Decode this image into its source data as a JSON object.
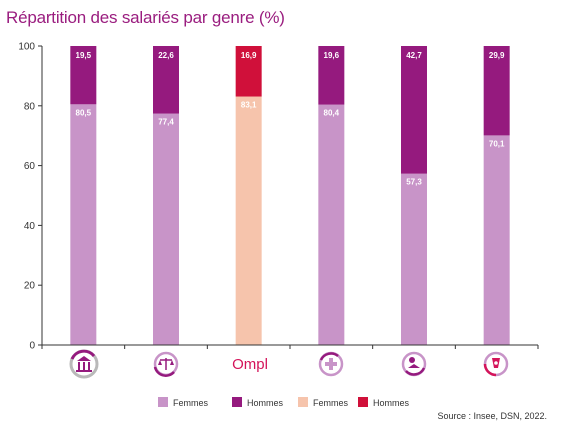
{
  "title": "Répartition des salariés par genre (%)",
  "source": "Source : Insee, DSN, 2022.",
  "colors": {
    "femmes": "#c894c8",
    "hommes": "#951a7e",
    "femmes_ompl": "#f6c4ac",
    "hommes_ompl": "#d0103a",
    "title": "#9a1d7f"
  },
  "chart_data": {
    "type": "bar",
    "stacked": true,
    "ylim": [
      0,
      100
    ],
    "yticks": [
      0,
      20,
      40,
      60,
      80,
      100
    ],
    "grid": false,
    "categories": [
      "bank-icon",
      "scales-icon",
      "Ompl",
      "medical-icon",
      "education-icon",
      "health-icon"
    ],
    "series": [
      {
        "name": "Femmes",
        "values": [
          80.5,
          77.4,
          83.1,
          80.4,
          57.3,
          70.1
        ],
        "labels": [
          "80,5",
          "77,4",
          "83,1",
          "80,4",
          "57,3",
          "70,1"
        ]
      },
      {
        "name": "Hommes",
        "values": [
          19.5,
          22.6,
          16.9,
          19.6,
          42.7,
          29.9
        ],
        "labels": [
          "19,5",
          "22,6",
          "16,9",
          "19,6",
          "42,7",
          "29,9"
        ]
      }
    ],
    "highlight_index": 2,
    "legend": [
      "Femmes",
      "Hommes",
      "Femmes",
      "Hommes"
    ],
    "legend_placement": "bottom"
  }
}
